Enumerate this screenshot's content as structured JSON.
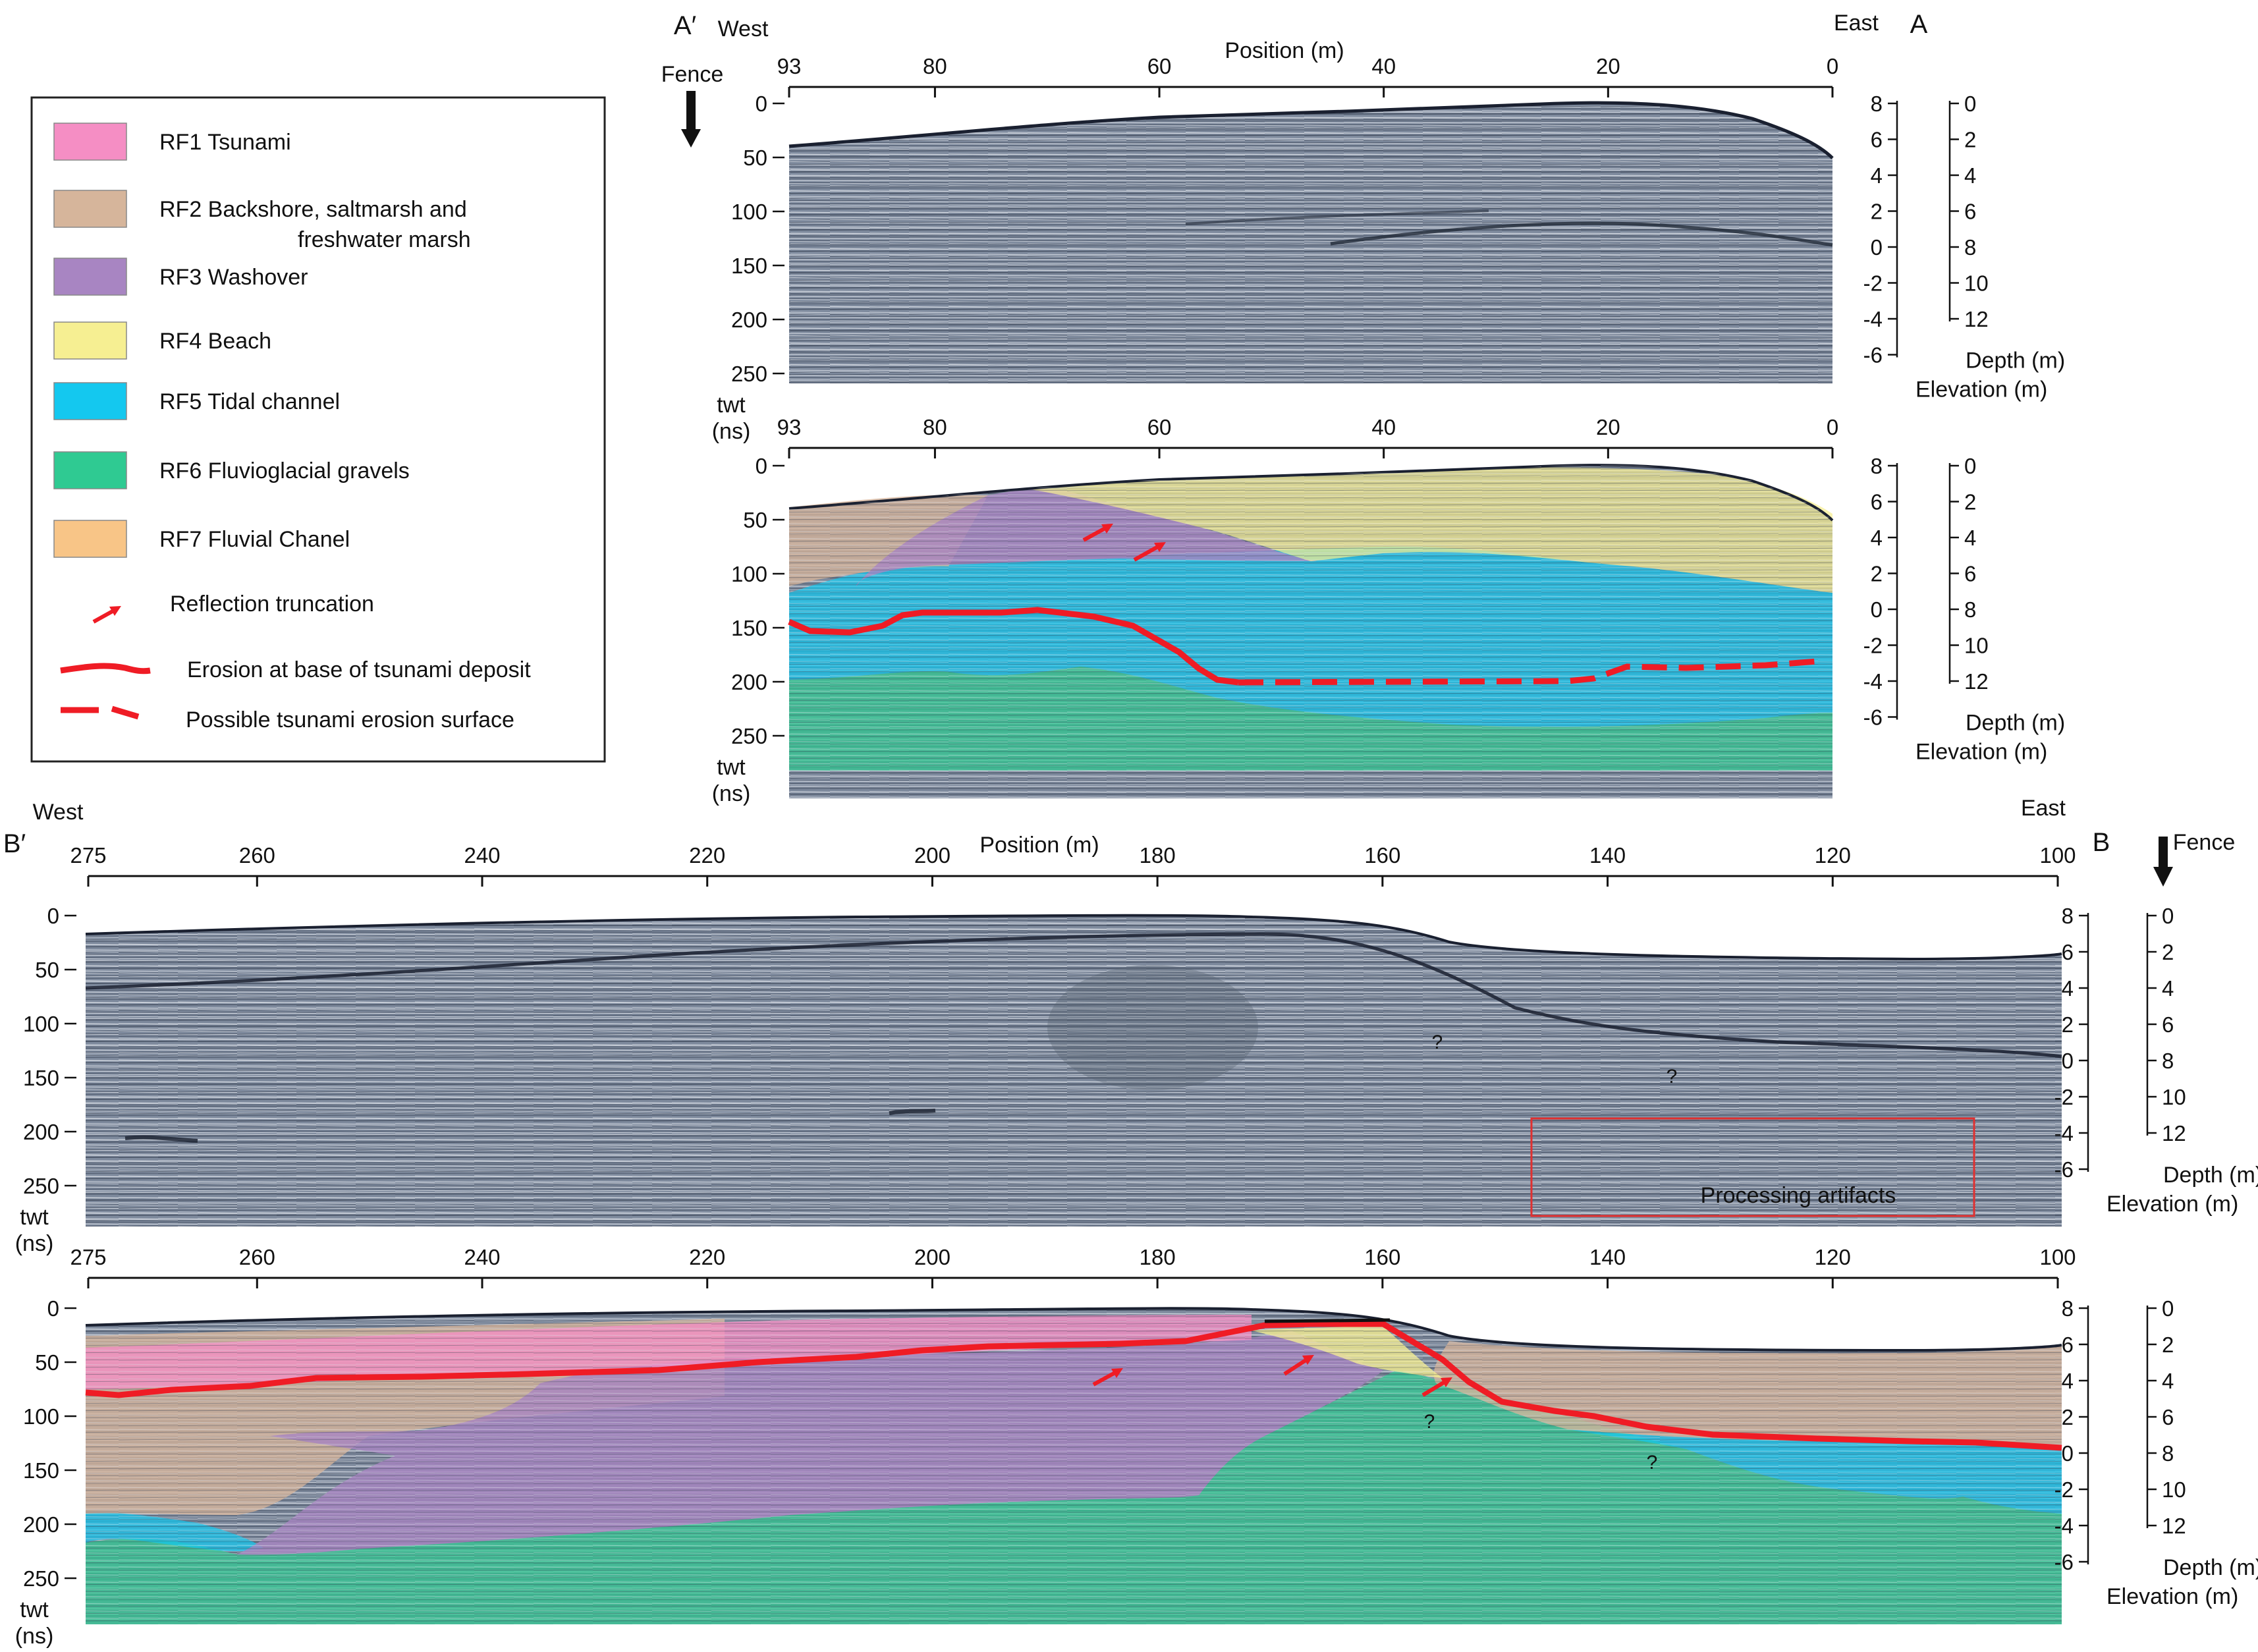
{
  "legend": {
    "items": [
      {
        "label": "RF1 Tsunami",
        "color": "#f58ec4"
      },
      {
        "label": "RF2  Backshore, saltmarsh and",
        "label2": "freshwater marsh",
        "color": "#d6b59b"
      },
      {
        "label": "RF3 Washover",
        "color": "#a885c2"
      },
      {
        "label": "RF4 Beach",
        "color": "#f6ef92"
      },
      {
        "label": "RF5 Tidal channel",
        "color": "#14c8ef"
      },
      {
        "label": "RF6 Fluvioglacial gravels",
        "color": "#2fca92"
      },
      {
        "label": "RF7 Fluvial Chanel",
        "color": "#f8c587"
      }
    ],
    "symbols": [
      {
        "label": "Reflection truncation"
      },
      {
        "label": "Erosion at base of tsunami deposit"
      },
      {
        "label": "Possible tsunami erosion surface"
      }
    ]
  },
  "profile_a": {
    "corner_left": "A′",
    "corner_right": "A",
    "dir_left": "West",
    "dir_right": "East",
    "fence": "Fence",
    "position_label": "Position (m)",
    "position_ticks": [
      "93",
      "80",
      "60",
      "40",
      "20",
      "0"
    ],
    "twt_ticks": [
      "0",
      "50",
      "100",
      "150",
      "200",
      "250"
    ],
    "twt_label_1": "twt",
    "twt_label_2": "(ns)",
    "elev_ticks": [
      "8",
      "6",
      "4",
      "2",
      "0",
      "-2",
      "-4",
      "-6"
    ],
    "depth_ticks": [
      "0",
      "2",
      "4",
      "6",
      "8",
      "10",
      "12"
    ],
    "depth_label": "Depth (m)",
    "elev_label": "Elevation (m)"
  },
  "profile_b": {
    "corner_left": "B′",
    "corner_right": "B",
    "dir_left": "West",
    "dir_right": "East",
    "fence": "Fence",
    "position_label": "Position (m)",
    "position_ticks": [
      "275",
      "260",
      "240",
      "220",
      "200",
      "180",
      "160",
      "140",
      "120",
      "100"
    ],
    "twt_ticks": [
      "0",
      "50",
      "100",
      "150",
      "200",
      "250"
    ],
    "twt_label_1": "twt",
    "twt_label_2": "(ns)",
    "elev_ticks": [
      "8",
      "6",
      "4",
      "2",
      "0",
      "-2",
      "-4",
      "-6"
    ],
    "depth_ticks": [
      "0",
      "2",
      "4",
      "6",
      "8",
      "10",
      "12"
    ],
    "depth_label": "Depth (m)",
    "elev_label": "Elevation (m)",
    "question_mark": "?",
    "artifact_label": "Processing artifacts"
  },
  "colors": {
    "radar": "#7f8b9e",
    "erosion": "#ef1c25",
    "artifact_box": "#e03030"
  }
}
